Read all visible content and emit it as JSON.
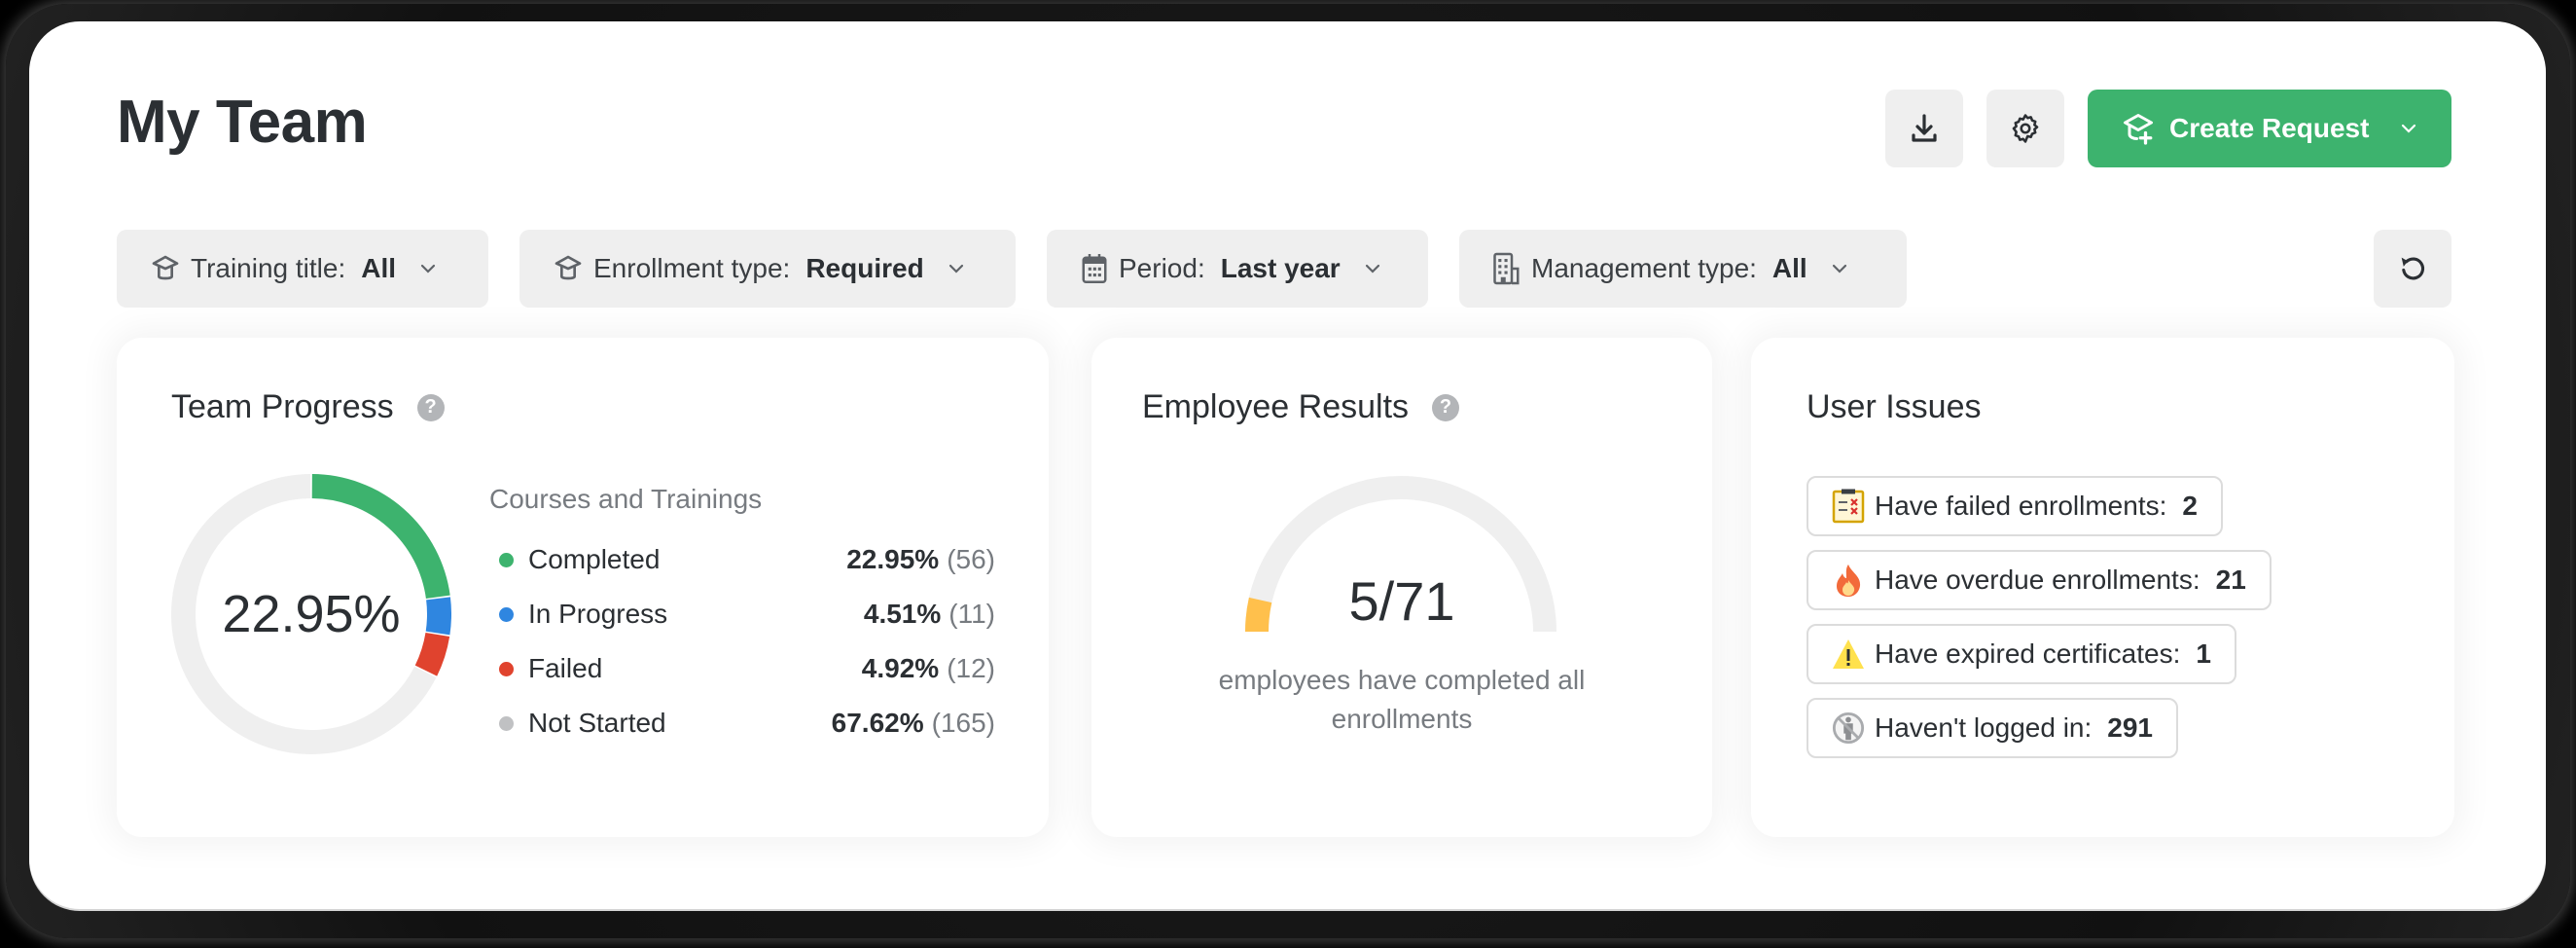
{
  "header": {
    "title": "My Team",
    "download_icon": "download-icon",
    "settings_icon": "gear-icon",
    "create_request": {
      "label": "Create Request",
      "icon": "graduation-cap-plus-icon"
    }
  },
  "filters": [
    {
      "label": "Training title:",
      "value": "All",
      "icon": "graduation-cap-icon"
    },
    {
      "label": "Enrollment type:",
      "value": "Required",
      "icon": "graduation-cap-icon"
    },
    {
      "label": "Period:",
      "value": "Last year",
      "icon": "calendar-icon"
    },
    {
      "label": "Management type:",
      "value": "All",
      "icon": "building-icon"
    }
  ],
  "reset_icon": "reset-icon",
  "team_progress": {
    "title": "Team Progress",
    "help": "?",
    "center_value": "22.95%",
    "legend_title": "Courses and Trainings",
    "items": [
      {
        "label": "Completed",
        "pct": "22.95%",
        "count": "(56)",
        "color": "#3db36e"
      },
      {
        "label": "In Progress",
        "pct": "4.51%",
        "count": "(11)",
        "color": "#2f86e0"
      },
      {
        "label": "Failed",
        "pct": "4.92%",
        "count": "(12)",
        "color": "#e0432e"
      },
      {
        "label": "Not Started",
        "pct": "67.62%",
        "count": "(165)",
        "color": "#c0c1c3"
      }
    ]
  },
  "employee_results": {
    "title": "Employee Results",
    "help": "?",
    "value": "5/71",
    "completed": 5,
    "total": 71,
    "caption": "employees have completed all enrollments",
    "gauge_color": "#ffc04c",
    "track_color": "#efefef"
  },
  "user_issues": {
    "title": "User Issues",
    "items": [
      {
        "label": "Have failed enrollments:",
        "count": "2",
        "icon": "failed-clipboard-icon"
      },
      {
        "label": "Have overdue enrollments:",
        "count": "21",
        "icon": "fire-icon"
      },
      {
        "label": "Have expired certificates:",
        "count": "1",
        "icon": "warning-icon"
      },
      {
        "label": "Haven't logged in:",
        "count": "291",
        "icon": "no-person-icon"
      }
    ]
  },
  "colors": {
    "accent": "#3db36e",
    "completed": "#3db36e",
    "in_progress": "#2f86e0",
    "failed": "#e0432e",
    "not_started": "#efefef",
    "gauge": "#ffc04c"
  },
  "chart_data": [
    {
      "type": "pie",
      "title": "Team Progress",
      "subtitle": "Courses and Trainings",
      "categories": [
        "Completed",
        "In Progress",
        "Failed",
        "Not Started"
      ],
      "values": [
        22.95,
        4.51,
        4.92,
        67.62
      ],
      "counts": [
        56,
        11,
        12,
        165
      ],
      "center_label": "22.95%",
      "legend_position": "right"
    },
    {
      "type": "gauge",
      "title": "Employee Results",
      "value": 5,
      "max": 71,
      "label": "5/71",
      "caption": "employees have completed all enrollments"
    }
  ]
}
